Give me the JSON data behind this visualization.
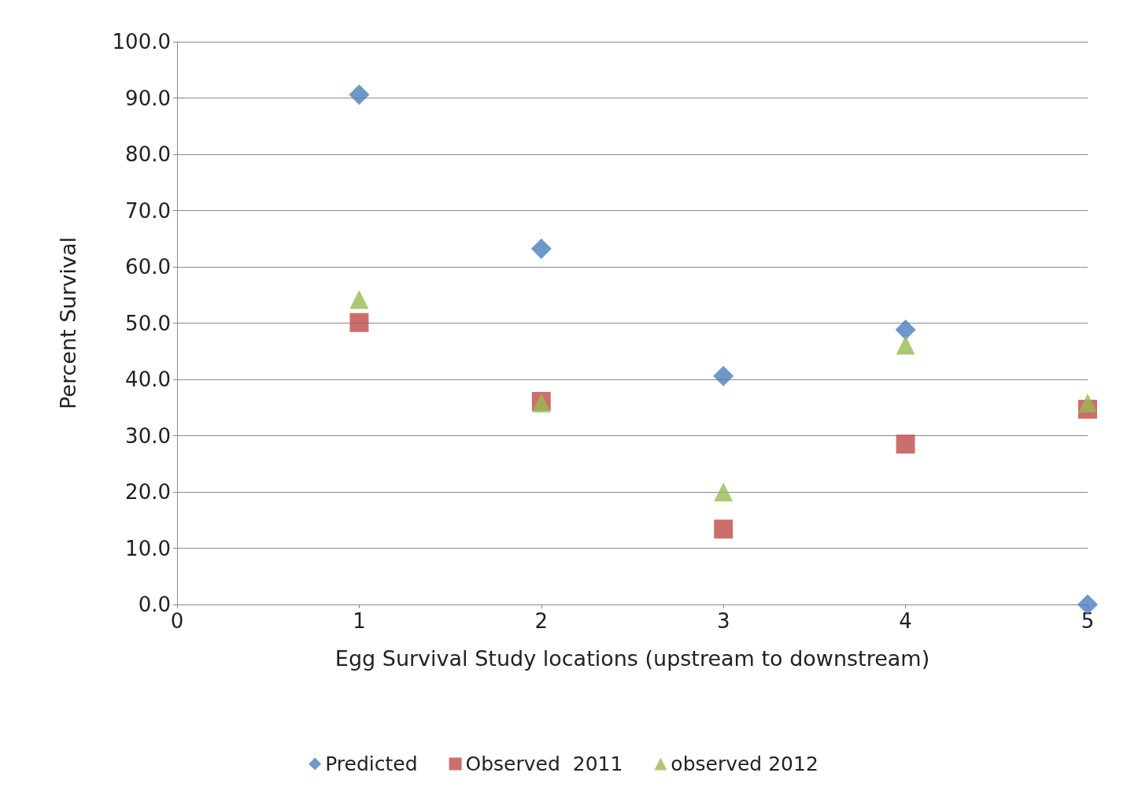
{
  "chart_data": {
    "type": "scatter",
    "xlabel": "Egg Survival Study locations (upstream to downstream)",
    "ylabel": "Percent Survival",
    "xlim": [
      0,
      5
    ],
    "xticks": [
      0,
      1,
      2,
      3,
      4,
      5
    ],
    "ylim": [
      0,
      100
    ],
    "yticks": [
      {
        "value": 0,
        "label": "0.0"
      },
      {
        "value": 10,
        "label": "10.0"
      },
      {
        "value": 20,
        "label": "20.0"
      },
      {
        "value": 30,
        "label": "30.0"
      },
      {
        "value": 40,
        "label": "40.0"
      },
      {
        "value": 50,
        "label": "50.0"
      },
      {
        "value": 60,
        "label": "60.0"
      },
      {
        "value": 70,
        "label": "70.0"
      },
      {
        "value": 80,
        "label": "80.0"
      },
      {
        "value": 90,
        "label": "90.0"
      },
      {
        "value": 100,
        "label": "100.0"
      }
    ],
    "grid": "y",
    "legend": "bottom",
    "x": [
      1,
      2,
      3,
      4,
      5
    ],
    "series": [
      {
        "name": "Predicted",
        "color": "#4a7ebb",
        "marker": "diamond",
        "values": [
          90.6,
          63.2,
          40.6,
          48.8,
          0
        ]
      },
      {
        "name": "Observed  2011",
        "color": "#be4b48",
        "marker": "square",
        "values": [
          50.1,
          36.1,
          13.4,
          28.5,
          34.7
        ]
      },
      {
        "name": "observed 2012",
        "color": "#98b954",
        "marker": "triangle",
        "values": [
          54.2,
          35.8,
          20.0,
          46.1,
          35.8
        ]
      }
    ]
  }
}
